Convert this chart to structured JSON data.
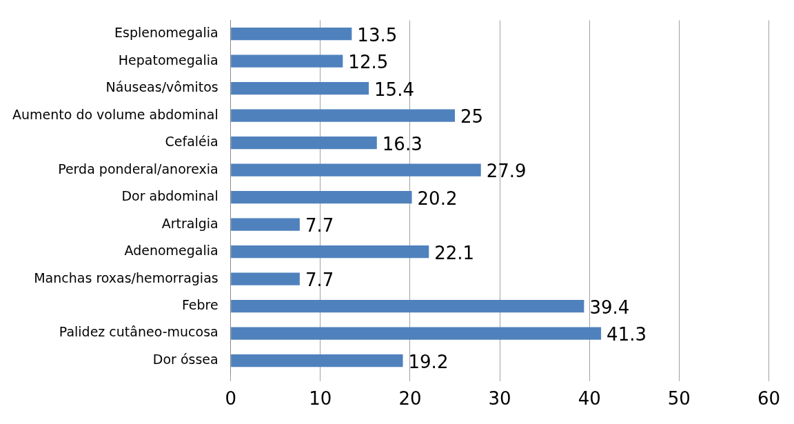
{
  "chart_data": {
    "type": "bar",
    "orientation": "horizontal",
    "categories": [
      "Esplenomegalia",
      "Hepatomegalia",
      "Náuseas/vômitos",
      "Aumento do volume abdominal",
      "Cefaléia",
      "Perda ponderal/anorexia",
      "Dor abdominal",
      "Artralgia",
      "Adenomegalia",
      "Manchas roxas/hemorragias",
      "Febre",
      "Palidez cutâneo-mucosa",
      "Dor óssea"
    ],
    "values": [
      13.5,
      12.5,
      15.4,
      25,
      16.3,
      27.9,
      20.2,
      7.7,
      22.1,
      7.7,
      39.4,
      41.3,
      19.2
    ],
    "color": "#4f81bd",
    "xlim": [
      0,
      60
    ],
    "xticks": [
      0,
      10,
      20,
      30,
      40,
      50,
      60
    ],
    "grid": "x",
    "data_labels": true,
    "legend": false
  }
}
